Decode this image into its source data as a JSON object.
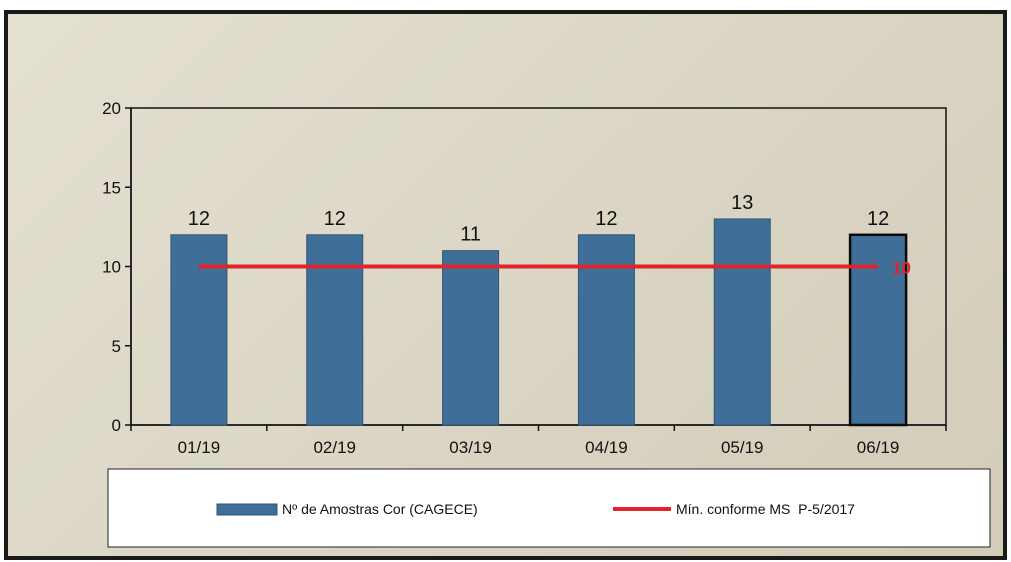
{
  "chart_data": {
    "type": "bar",
    "title": "",
    "xlabel": "",
    "ylabel": "",
    "categories": [
      "01/19",
      "02/19",
      "03/19",
      "04/19",
      "05/19",
      "06/19"
    ],
    "ylim": [
      0,
      20
    ],
    "yticks": [
      0,
      5,
      10,
      15,
      20
    ],
    "grid": false,
    "legend_position": "bottom",
    "series": [
      {
        "name": "Nº de Amostras Cor (CAGECE)",
        "type": "bar",
        "values": [
          12,
          12,
          11,
          12,
          13,
          12
        ],
        "data_labels": [
          "12",
          "12",
          "11",
          "12",
          "13",
          "12"
        ],
        "color": "#3f6f99",
        "highlight_index": 5,
        "highlight_edge_color": "#0a0a0a"
      },
      {
        "name": "Mín. conforme MS  P-5/2017",
        "type": "line",
        "values": [
          10,
          10,
          10,
          10,
          10,
          10
        ],
        "end_label": "10",
        "color": "#e0242a"
      }
    ]
  }
}
